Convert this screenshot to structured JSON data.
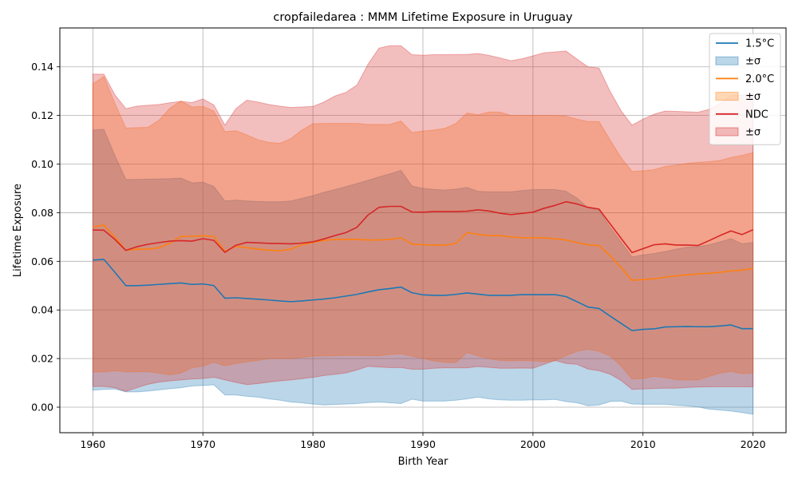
{
  "chart_data": {
    "type": "area",
    "title": "cropfailedarea : MMM Lifetime Exposure in Uruguay",
    "xlabel": "Birth Year",
    "ylabel": "Lifetime Exposure",
    "xlim": [
      1957,
      2023
    ],
    "ylim": [
      -0.0105,
      0.156
    ],
    "xticks": [
      1960,
      1970,
      1980,
      1990,
      2000,
      2010,
      2020
    ],
    "xtick_labels": [
      "1960",
      "1970",
      "1980",
      "1990",
      "2000",
      "2010",
      "2020"
    ],
    "yticks": [
      0.0,
      0.02,
      0.04,
      0.06,
      0.08,
      0.1,
      0.12,
      0.14
    ],
    "ytick_labels": [
      "0.00",
      "0.02",
      "0.04",
      "0.06",
      "0.08",
      "0.10",
      "0.12",
      "0.14"
    ],
    "grid": true,
    "legend_position": "top-right",
    "legend_entries": [
      {
        "label": "1.5°C",
        "kind": "line",
        "series": 0
      },
      {
        "label": "±σ",
        "kind": "band",
        "series": 0
      },
      {
        "label": "2.0°C",
        "kind": "line",
        "series": 1
      },
      {
        "label": "±σ",
        "kind": "band",
        "series": 1
      },
      {
        "label": "NDC",
        "kind": "line",
        "series": 2
      },
      {
        "label": "±σ",
        "kind": "band",
        "series": 2
      }
    ],
    "x": [
      1960,
      1961,
      1962,
      1963,
      1964,
      1965,
      1966,
      1967,
      1968,
      1969,
      1970,
      1971,
      1972,
      1973,
      1974,
      1975,
      1976,
      1977,
      1978,
      1979,
      1980,
      1981,
      1982,
      1983,
      1984,
      1985,
      1986,
      1987,
      1988,
      1989,
      1990,
      1991,
      1992,
      1993,
      1994,
      1995,
      1996,
      1997,
      1998,
      1999,
      2000,
      2001,
      2002,
      2003,
      2004,
      2005,
      2006,
      2007,
      2008,
      2009,
      2010,
      2011,
      2012,
      2013,
      2014,
      2015,
      2016,
      2017,
      2018,
      2019,
      2020
    ],
    "series": [
      {
        "name": "1.5°C",
        "color": "#1f77b4",
        "mean": [
          0.0605,
          0.0608,
          0.0555,
          0.05,
          0.05,
          0.0502,
          0.0505,
          0.0508,
          0.0511,
          0.0505,
          0.0507,
          0.05,
          0.0448,
          0.045,
          0.0447,
          0.0444,
          0.0441,
          0.0437,
          0.0434,
          0.0437,
          0.0441,
          0.0445,
          0.045,
          0.0457,
          0.0464,
          0.0474,
          0.0483,
          0.0488,
          0.0494,
          0.0471,
          0.0462,
          0.046,
          0.046,
          0.0464,
          0.047,
          0.0465,
          0.046,
          0.046,
          0.046,
          0.0463,
          0.0463,
          0.0463,
          0.0463,
          0.0455,
          0.0434,
          0.0412,
          0.0406,
          0.0375,
          0.0345,
          0.0315,
          0.032,
          0.0322,
          0.033,
          0.0331,
          0.0332,
          0.0331,
          0.0331,
          0.0334,
          0.0338,
          0.0323,
          0.0323
        ],
        "upper": [
          0.114,
          0.1143,
          0.1035,
          0.0937,
          0.0937,
          0.0938,
          0.0939,
          0.094,
          0.0942,
          0.0923,
          0.0925,
          0.0908,
          0.0848,
          0.0852,
          0.0848,
          0.0846,
          0.0845,
          0.0845,
          0.0848,
          0.0859,
          0.087,
          0.0884,
          0.0895,
          0.0907,
          0.092,
          0.0933,
          0.0947,
          0.096,
          0.0974,
          0.091,
          0.09,
          0.0896,
          0.0893,
          0.0897,
          0.0904,
          0.0888,
          0.0886,
          0.0886,
          0.0886,
          0.0891,
          0.0895,
          0.0896,
          0.0895,
          0.0888,
          0.086,
          0.082,
          0.081,
          0.074,
          0.068,
          0.0618,
          0.0626,
          0.0632,
          0.064,
          0.065,
          0.0658,
          0.066,
          0.0668,
          0.068,
          0.0693,
          0.0672,
          0.0677
        ],
        "lower": [
          0.007,
          0.0073,
          0.0075,
          0.0063,
          0.0063,
          0.0066,
          0.0071,
          0.0076,
          0.008,
          0.0087,
          0.0089,
          0.0092,
          0.005,
          0.005,
          0.0045,
          0.0041,
          0.0034,
          0.0029,
          0.0021,
          0.0018,
          0.0013,
          0.0009,
          0.0011,
          0.0013,
          0.0015,
          0.0019,
          0.0021,
          0.0018,
          0.0015,
          0.0033,
          0.0025,
          0.0025,
          0.0025,
          0.0029,
          0.0034,
          0.0041,
          0.0034,
          0.003,
          0.0029,
          0.0029,
          0.003,
          0.003,
          0.0032,
          0.0023,
          0.0018,
          0.0006,
          0.0009,
          0.0023,
          0.0025,
          0.0013,
          0.0012,
          0.0012,
          0.0012,
          0.0008,
          0.0005,
          0.0001,
          -0.0008,
          -0.0012,
          -0.0016,
          -0.0022,
          -0.0029
        ]
      },
      {
        "name": "2.0°C",
        "color": "#ff7f0e",
        "mean": [
          0.0741,
          0.0749,
          0.07,
          0.0645,
          0.065,
          0.065,
          0.0656,
          0.0675,
          0.0702,
          0.0703,
          0.0705,
          0.0702,
          0.0641,
          0.0662,
          0.0656,
          0.065,
          0.0646,
          0.0643,
          0.065,
          0.0668,
          0.0678,
          0.0686,
          0.069,
          0.069,
          0.069,
          0.0688,
          0.0688,
          0.069,
          0.0697,
          0.0671,
          0.0668,
          0.0667,
          0.0666,
          0.0674,
          0.0718,
          0.0711,
          0.0706,
          0.0706,
          0.07,
          0.0697,
          0.0697,
          0.0696,
          0.0693,
          0.0688,
          0.0677,
          0.0668,
          0.0665,
          0.0624,
          0.0575,
          0.0522,
          0.0525,
          0.0528,
          0.0535,
          0.054,
          0.0544,
          0.0548,
          0.0551,
          0.0555,
          0.056,
          0.0564,
          0.057
        ],
        "upper": [
          0.133,
          0.136,
          0.125,
          0.1148,
          0.115,
          0.1151,
          0.118,
          0.123,
          0.126,
          0.1235,
          0.1237,
          0.1218,
          0.1133,
          0.1137,
          0.112,
          0.11,
          0.1089,
          0.1085,
          0.1105,
          0.114,
          0.1166,
          0.1167,
          0.1167,
          0.1167,
          0.1167,
          0.1163,
          0.1163,
          0.1163,
          0.1177,
          0.113,
          0.1136,
          0.114,
          0.1147,
          0.1167,
          0.121,
          0.1203,
          0.1214,
          0.1214,
          0.12,
          0.12,
          0.12,
          0.12,
          0.12,
          0.1197,
          0.1185,
          0.1175,
          0.1175,
          0.11,
          0.1027,
          0.097,
          0.0972,
          0.0977,
          0.099,
          0.0996,
          0.1003,
          0.1007,
          0.101,
          0.1015,
          0.1027,
          0.1036,
          0.1047
        ],
        "lower": [
          0.0145,
          0.0145,
          0.015,
          0.0145,
          0.0146,
          0.0146,
          0.014,
          0.0133,
          0.014,
          0.0162,
          0.0169,
          0.0185,
          0.017,
          0.018,
          0.0187,
          0.0192,
          0.02,
          0.02,
          0.02,
          0.0205,
          0.021,
          0.0211,
          0.0212,
          0.0213,
          0.0213,
          0.0212,
          0.0212,
          0.0217,
          0.022,
          0.021,
          0.0201,
          0.019,
          0.0185,
          0.0183,
          0.0225,
          0.0211,
          0.02,
          0.0192,
          0.0191,
          0.0192,
          0.0191,
          0.0187,
          0.0191,
          0.0212,
          0.023,
          0.0238,
          0.023,
          0.0211,
          0.017,
          0.0116,
          0.0118,
          0.0127,
          0.0122,
          0.0113,
          0.0112,
          0.0112,
          0.0127,
          0.014,
          0.0147,
          0.0138,
          0.014
        ]
      },
      {
        "name": "NDC",
        "color": "#d62728",
        "mean": [
          0.0729,
          0.0728,
          0.069,
          0.0645,
          0.066,
          0.067,
          0.0677,
          0.0683,
          0.0685,
          0.0683,
          0.0693,
          0.0686,
          0.0637,
          0.0666,
          0.0678,
          0.0676,
          0.0674,
          0.0673,
          0.0672,
          0.0675,
          0.068,
          0.0692,
          0.0706,
          0.0718,
          0.074,
          0.079,
          0.0822,
          0.0826,
          0.0826,
          0.0803,
          0.0802,
          0.0805,
          0.0805,
          0.0805,
          0.0806,
          0.0812,
          0.0807,
          0.0798,
          0.0792,
          0.0797,
          0.0802,
          0.0818,
          0.083,
          0.0845,
          0.0836,
          0.0822,
          0.0815,
          0.0755,
          0.0695,
          0.0636,
          0.0652,
          0.0668,
          0.0672,
          0.0667,
          0.0667,
          0.0665,
          0.0685,
          0.0706,
          0.0725,
          0.071,
          0.073
        ],
        "upper": [
          0.137,
          0.137,
          0.1285,
          0.1228,
          0.1238,
          0.1242,
          0.1245,
          0.1252,
          0.1258,
          0.1253,
          0.1268,
          0.1243,
          0.116,
          0.1228,
          0.1263,
          0.1255,
          0.1245,
          0.1238,
          0.1233,
          0.1235,
          0.1237,
          0.1255,
          0.128,
          0.1295,
          0.1325,
          0.141,
          0.1477,
          0.1487,
          0.1487,
          0.145,
          0.1448,
          0.145,
          0.145,
          0.1451,
          0.1451,
          0.1455,
          0.1447,
          0.1437,
          0.1425,
          0.1433,
          0.1445,
          0.1458,
          0.1461,
          0.1465,
          0.1432,
          0.14,
          0.1395,
          0.13,
          0.122,
          0.116,
          0.1185,
          0.1205,
          0.1218,
          0.1217,
          0.1215,
          0.1213,
          0.1225,
          0.125,
          0.1283,
          0.1283,
          0.129
        ],
        "lower": [
          0.0085,
          0.0085,
          0.008,
          0.0065,
          0.008,
          0.0094,
          0.0103,
          0.0108,
          0.0112,
          0.0116,
          0.0118,
          0.0123,
          0.0112,
          0.0102,
          0.0093,
          0.0097,
          0.0103,
          0.0108,
          0.0112,
          0.0117,
          0.0123,
          0.013,
          0.0135,
          0.0141,
          0.0153,
          0.0168,
          0.0165,
          0.0163,
          0.0163,
          0.0156,
          0.0156,
          0.016,
          0.0162,
          0.0162,
          0.0162,
          0.0167,
          0.0164,
          0.016,
          0.016,
          0.0161,
          0.016,
          0.0176,
          0.0192,
          0.018,
          0.0176,
          0.0157,
          0.015,
          0.0136,
          0.011,
          0.0073,
          0.0075,
          0.0077,
          0.0078,
          0.0078,
          0.0081,
          0.0083,
          0.0084,
          0.0084,
          0.0084,
          0.0084,
          0.0084
        ]
      }
    ]
  }
}
